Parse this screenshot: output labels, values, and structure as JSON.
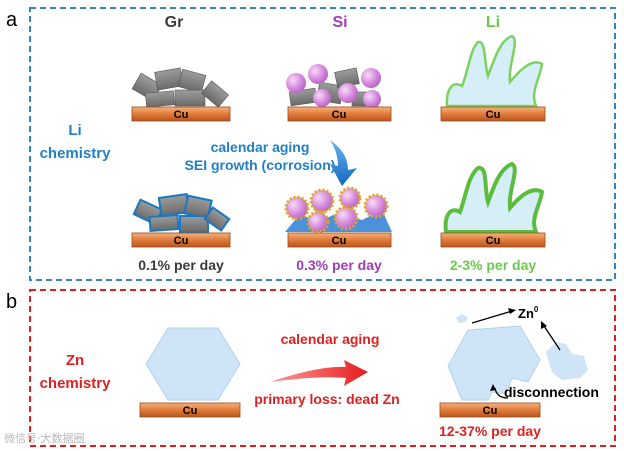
{
  "panel_a": {
    "letter": "a",
    "chemistry_line1": "Li",
    "chemistry_line2": "chemistry",
    "column_headers": {
      "gr": "Gr",
      "si": "Si",
      "li": "Li"
    },
    "substrate_label": "Cu",
    "arrow_label_line1": "calendar aging",
    "arrow_label_line2": "SEI growth (corrosion)",
    "rates": {
      "gr": "0.1% per day",
      "si": "0.3% per day",
      "li": "2-3% per day"
    }
  },
  "panel_b": {
    "letter": "b",
    "chemistry_line1": "Zn",
    "chemistry_line2": "chemistry",
    "substrate_label": "Cu",
    "arrow_label_top": "calendar aging",
    "arrow_label_bottom": "primary loss: dead Zn",
    "zn0_base": "Zn",
    "zn0_superscript": "0",
    "disconnection_label": "disconnection",
    "rate": "12-37% per day"
  },
  "watermark": "微信号·大数据圈"
}
